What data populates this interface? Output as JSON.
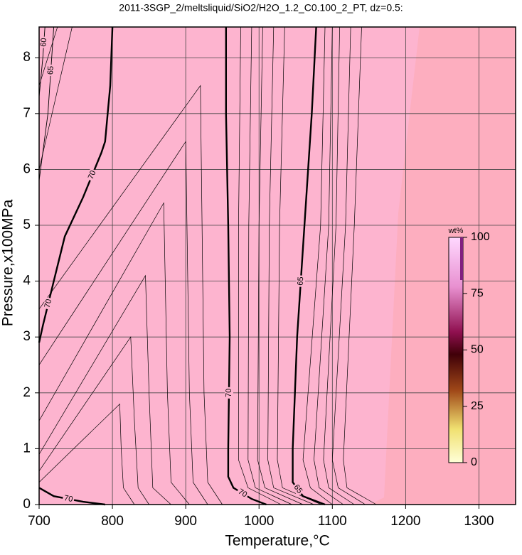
{
  "chart_data": {
    "type": "contour",
    "title": "2011-3SGP_2/meltsliquid/SiO2/H2O_1.2_C0.100_2_PT, dz=0.5:",
    "x_label": "Temperature,°C",
    "y_label": "Pressure,x100MPa",
    "xlim": [
      700,
      1350
    ],
    "ylim": [
      0,
      8.55
    ],
    "xticks": [
      700,
      800,
      900,
      1000,
      1100,
      1200,
      1300
    ],
    "yticks": [
      0,
      1,
      2,
      3,
      4,
      5,
      6,
      7,
      8
    ],
    "grid": true,
    "contours": [
      {
        "level": 70,
        "x": [
          955,
          955,
          958,
          960,
          958,
          958,
          965,
          990,
          1010
        ],
        "y": [
          8.55,
          7,
          5,
          3,
          1,
          0.5,
          0.3,
          0.1,
          0
        ]
      },
      {
        "level": 65,
        "x": [
          1078,
          1072,
          1062,
          1052,
          1046,
          1046,
          1060,
          1090
        ],
        "y": [
          8.55,
          7,
          5,
          3,
          1,
          0.4,
          0.15,
          0
        ]
      },
      {
        "level": 70,
        "x": [
          800,
          797,
          790,
          785,
          760,
          735,
          720,
          705,
          700
        ],
        "y": [
          8.55,
          7.5,
          6.5,
          6.3,
          5.5,
          4.8,
          4,
          3.2,
          2.9
        ]
      },
      {
        "level": 70,
        "x": [
          700,
          720,
          760,
          790
        ],
        "y": [
          0.3,
          0.15,
          0.05,
          0
        ]
      },
      {
        "level": 65,
        "x": [
          700,
          712,
          720
        ],
        "y": [
          5.8,
          7,
          8.55
        ]
      },
      {
        "level": 60,
        "x": [
          700,
          705,
          708
        ],
        "y": [
          7.3,
          8,
          8.55
        ]
      }
    ],
    "lines": [
      {
        "x": [
          975,
          972,
          972,
          985,
          1030
        ],
        "y": [
          8.55,
          5,
          0.8,
          0.3,
          0
        ]
      },
      {
        "x": [
          990,
          986,
          985,
          995,
          1045
        ],
        "y": [
          8.55,
          5,
          0.8,
          0.3,
          0
        ]
      },
      {
        "x": [
          1005,
          1000,
          998,
          1008,
          1060
        ],
        "y": [
          8.55,
          5,
          0.8,
          0.3,
          0
        ]
      },
      {
        "x": [
          1020,
          1014,
          1012,
          1020,
          1075
        ],
        "y": [
          8.55,
          5,
          0.8,
          0.3,
          0
        ]
      },
      {
        "x": [
          1035,
          1028,
          1025,
          1032,
          1085
        ],
        "y": [
          8.55,
          5,
          0.8,
          0.3,
          0
        ]
      },
      {
        "x": [
          1090,
          1084,
          1060,
          1070,
          1100
        ],
        "y": [
          8.55,
          5,
          0.8,
          0.3,
          0
        ]
      },
      {
        "x": [
          1100,
          1095,
          1075,
          1082,
          1115
        ],
        "y": [
          8.55,
          5,
          0.8,
          0.3,
          0
        ]
      },
      {
        "x": [
          1110,
          1105,
          1088,
          1095,
          1130
        ],
        "y": [
          8.55,
          5,
          0.8,
          0.3,
          0
        ]
      },
      {
        "x": [
          1125,
          1118,
          1100,
          1108,
          1145
        ],
        "y": [
          8.55,
          5,
          0.8,
          0.3,
          0
        ]
      },
      {
        "x": [
          1140,
          1130,
          1115,
          1120,
          1160
        ],
        "y": [
          8.55,
          5,
          0.8,
          0.3,
          0
        ]
      },
      {
        "x": [
          700,
          870,
          875,
          880,
          905
        ],
        "y": [
          1.5,
          5.4,
          2,
          0.4,
          0
        ]
      },
      {
        "x": [
          700,
          900,
          905,
          910,
          930
        ],
        "y": [
          2.5,
          6.5,
          2,
          0.4,
          0
        ]
      },
      {
        "x": [
          700,
          920,
          925,
          930,
          950
        ],
        "y": [
          3.5,
          7.5,
          2,
          0.4,
          0
        ]
      },
      {
        "x": [
          700,
          845,
          850,
          855,
          880
        ],
        "y": [
          0.9,
          4.1,
          2,
          0.3,
          0
        ]
      },
      {
        "x": [
          700,
          825,
          830,
          835,
          850
        ],
        "y": [
          0.6,
          3.0,
          1.5,
          0.3,
          0
        ]
      },
      {
        "x": [
          700,
          810,
          812,
          815,
          830
        ],
        "y": [
          0.4,
          1.8,
          1,
          0.3,
          0
        ]
      },
      {
        "x": [
          700,
          745
        ],
        "y": [
          6,
          8.55
        ]
      },
      {
        "x": [
          700,
          725
        ],
        "y": [
          7.5,
          8.55
        ]
      }
    ],
    "colorbar": {
      "label": "wt%",
      "lim": [
        0,
        100
      ],
      "ticks": [
        0,
        25,
        50,
        75,
        100
      ]
    }
  }
}
